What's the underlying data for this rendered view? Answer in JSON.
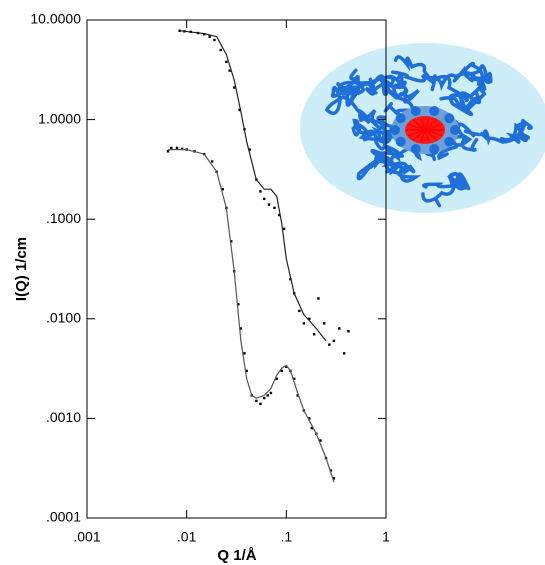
{
  "chart_data": {
    "type": "scatter",
    "xlabel": "Q 1/Å",
    "ylabel": "I(Q) 1/cm",
    "xlog": true,
    "ylog": true,
    "xlim": [
      0.001,
      1
    ],
    "ylim": [
      0.0001,
      10
    ],
    "xticks": [
      {
        "value": 0.001,
        "label": ".001"
      },
      {
        "value": 0.01,
        "label": ".01"
      },
      {
        "value": 0.1,
        "label": ".1"
      },
      1
    ],
    "yticks": [
      {
        "value": 10,
        "label": "10.0000"
      },
      {
        "value": 1,
        "label": "1.0000"
      },
      {
        "value": 0.1,
        "label": ".1000"
      },
      {
        "value": 0.01,
        "label": ".0100"
      },
      {
        "value": 0.001,
        "label": ".0010"
      },
      {
        "value": 0.0001,
        "label": ".0001"
      }
    ],
    "series": [
      {
        "style": "points",
        "color": "#000000",
        "x": [
          0.0085,
          0.0095,
          0.011,
          0.013,
          0.015,
          0.017,
          0.019,
          0.022,
          0.025,
          0.027,
          0.03,
          0.034,
          0.038,
          0.043,
          0.05,
          0.055,
          0.06,
          0.067,
          0.076,
          0.085,
          0.095,
          0.11,
          0.12,
          0.135,
          0.15,
          0.17,
          0.19,
          0.21,
          0.24,
          0.27,
          0.3,
          0.34,
          0.38,
          0.42
        ],
        "values": [
          7.8,
          7.7,
          7.6,
          7.4,
          7.2,
          6.8,
          6.3,
          5.0,
          3.8,
          3.1,
          2.1,
          1.25,
          0.8,
          0.5,
          0.25,
          0.19,
          0.16,
          0.14,
          0.13,
          0.11,
          0.08,
          0.025,
          0.018,
          0.012,
          0.009,
          0.01,
          0.007,
          0.016,
          0.009,
          0.0055,
          0.006,
          0.008,
          0.0045,
          0.0075
        ]
      },
      {
        "style": "line",
        "color": "#222222",
        "x": [
          0.0085,
          0.015,
          0.02,
          0.025,
          0.03,
          0.035,
          0.04,
          0.05,
          0.06,
          0.07,
          0.08,
          0.09,
          0.1,
          0.12,
          0.15,
          0.2,
          0.25
        ],
        "values": [
          7.8,
          7.3,
          6.8,
          4.5,
          2.5,
          1.2,
          0.6,
          0.25,
          0.2,
          0.2,
          0.17,
          0.09,
          0.04,
          0.018,
          0.011,
          0.008,
          0.006
        ]
      },
      {
        "style": "points",
        "color": "#000000",
        "x": [
          0.0065,
          0.007,
          0.008,
          0.009,
          0.01,
          0.012,
          0.015,
          0.018,
          0.02,
          0.023,
          0.025,
          0.028,
          0.03,
          0.033,
          0.035,
          0.038,
          0.04,
          0.045,
          0.05,
          0.055,
          0.06,
          0.065,
          0.07,
          0.08,
          0.09,
          0.1,
          0.11,
          0.12,
          0.13,
          0.15,
          0.17,
          0.18,
          0.2,
          0.22,
          0.25,
          0.28,
          0.3
        ],
        "values": [
          0.48,
          0.52,
          0.52,
          0.51,
          0.5,
          0.48,
          0.45,
          0.38,
          0.3,
          0.2,
          0.13,
          0.06,
          0.03,
          0.014,
          0.008,
          0.0045,
          0.003,
          0.0017,
          0.0015,
          0.0014,
          0.0016,
          0.0017,
          0.0018,
          0.0025,
          0.003,
          0.0033,
          0.003,
          0.0025,
          0.0017,
          0.0012,
          0.001,
          0.0008,
          0.0007,
          0.0006,
          0.0004,
          0.0003,
          0.00025
        ]
      },
      {
        "style": "line",
        "color": "#555555",
        "x": [
          0.0065,
          0.01,
          0.015,
          0.02,
          0.025,
          0.03,
          0.035,
          0.04,
          0.045,
          0.05,
          0.06,
          0.07,
          0.08,
          0.09,
          0.1,
          0.11,
          0.13,
          0.15,
          0.2,
          0.25,
          0.3
        ],
        "values": [
          0.5,
          0.5,
          0.45,
          0.3,
          0.13,
          0.03,
          0.006,
          0.0025,
          0.0017,
          0.0016,
          0.0017,
          0.002,
          0.0027,
          0.0032,
          0.0034,
          0.003,
          0.0018,
          0.0012,
          0.0007,
          0.0004,
          0.00023
        ]
      }
    ]
  }
}
